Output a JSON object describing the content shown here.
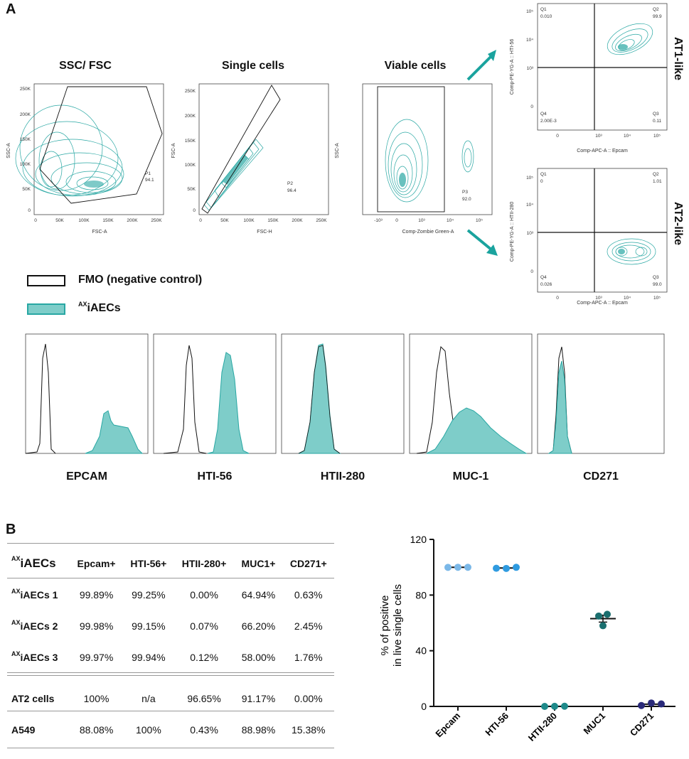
{
  "panels": {
    "a": "A",
    "b": "B"
  },
  "gating": [
    {
      "title": "SSC/ FSC",
      "xlabel": "FSC-A",
      "ylabel": "SSC-A",
      "gate": "P1",
      "pct": "94.1",
      "yticks": [
        "250K",
        "200K",
        "150K",
        "100K",
        "50K",
        "0"
      ],
      "xticks": [
        "0",
        "50K",
        "100K",
        "150K",
        "200K",
        "250K"
      ]
    },
    {
      "title": "Single cells",
      "xlabel": "FSC-H",
      "ylabel": "FSC-A",
      "gate": "P2",
      "pct": "96.4",
      "yticks": [
        "250K",
        "200K",
        "150K",
        "100K",
        "50K",
        "0"
      ],
      "xticks": [
        "0",
        "50K",
        "100K",
        "150K",
        "200K",
        "250K"
      ]
    },
    {
      "title": "Viable cells",
      "xlabel": "Comp-Zombie Green-A",
      "ylabel": "SSC-A",
      "gate": "P3",
      "pct": "92.0",
      "yticks": [],
      "xticks": [
        "-10³",
        "0",
        "10³",
        "10⁴",
        "10⁵"
      ]
    }
  ],
  "quadrants": [
    {
      "name": "AT1-like",
      "ylabel": "Comp-PE-YG-A :: HTI-56",
      "xlabel": "Comp-APC-A :: Epcam",
      "q1": "Q1",
      "q1v": "0.010",
      "q2": "Q2",
      "q2v": "99.9",
      "q3": "Q3",
      "q3v": "0.11",
      "q4": "Q4",
      "q4v": "2.00E-3",
      "yticks": [
        "10⁵",
        "10⁴",
        "10³",
        "0"
      ],
      "xticks": [
        "0",
        "10³",
        "10⁴",
        "10⁵"
      ]
    },
    {
      "name": "AT2-like",
      "ylabel": "Comp-PE-YG-A :: HTII-280",
      "xlabel": "Comp-APC-A :: Epcam",
      "q1": "Q1",
      "q1v": "0",
      "q2": "Q2",
      "q2v": "1.01",
      "q3": "Q3",
      "q3v": "99.0",
      "q4": "Q4",
      "q4v": "0.026",
      "yticks": [
        "10⁵",
        "10⁴",
        "10³",
        "0"
      ],
      "xticks": [
        "0",
        "10³",
        "10⁴",
        "10⁵"
      ]
    }
  ],
  "legend": {
    "fmo": "FMO (negative control)",
    "sample_sup": "AX",
    "sample": "iAECs"
  },
  "histograms": [
    "EPCAM",
    "HTI-56",
    "HTII-280",
    "MUC-1",
    "CD271"
  ],
  "table": {
    "header_sup": "AX",
    "header": [
      "iAECs",
      "Epcam+",
      "HTI-56+",
      "HTII-280+",
      "MUC1+",
      "CD271+"
    ],
    "rows": [
      {
        "sup": "AX",
        "label": "iAECs 1",
        "values": [
          "99.89%",
          "99.25%",
          "0.00%",
          "64.94%",
          "0.63%"
        ]
      },
      {
        "sup": "AX",
        "label": "iAECs 2",
        "values": [
          "99.98%",
          "99.15%",
          "0.07%",
          "66.20%",
          "2.45%"
        ]
      },
      {
        "sup": "AX",
        "label": "iAECs 3",
        "values": [
          "99.97%",
          "99.94%",
          "0.12%",
          "58.00%",
          "1.76%"
        ]
      },
      {
        "sup": "",
        "label": "AT2 cells",
        "values": [
          "100%",
          "n/a",
          "96.65%",
          "91.17%",
          "0.00%"
        ]
      },
      {
        "sup": "",
        "label": "A549",
        "values": [
          "88.08%",
          "100%",
          "0.43%",
          "88.98%",
          "15.38%"
        ]
      }
    ]
  },
  "chart_data": {
    "type": "scatter",
    "categories": [
      "Epcam",
      "HTI-56",
      "HTII-280",
      "MUC1",
      "CD271"
    ],
    "series": [
      {
        "name": "Epcam",
        "values": [
          99.89,
          99.98,
          99.97
        ],
        "mean": 99.95,
        "color": "#7bb8e8"
      },
      {
        "name": "HTI-56",
        "values": [
          99.25,
          99.15,
          99.94
        ],
        "mean": 99.45,
        "color": "#2f9be0"
      },
      {
        "name": "HTII-280",
        "values": [
          0.0,
          0.07,
          0.12
        ],
        "mean": 0.06,
        "color": "#1f8a8a"
      },
      {
        "name": "MUC1",
        "values": [
          64.94,
          66.2,
          58.0
        ],
        "mean": 63.05,
        "sem": 2.5,
        "color": "#1a6e6e"
      },
      {
        "name": "CD271",
        "values": [
          0.63,
          2.45,
          1.76
        ],
        "mean": 1.61,
        "color": "#2a2a7a"
      }
    ],
    "ylabel_line1": "% of positive",
    "ylabel_line2": "in live single cells",
    "yticks": [
      "0",
      "40",
      "80",
      "120"
    ],
    "ylim": [
      0,
      120
    ]
  },
  "colors": {
    "teal": "#28a7a3",
    "teal_fill": "#7ecdc9",
    "arrow": "#1aa39e"
  }
}
